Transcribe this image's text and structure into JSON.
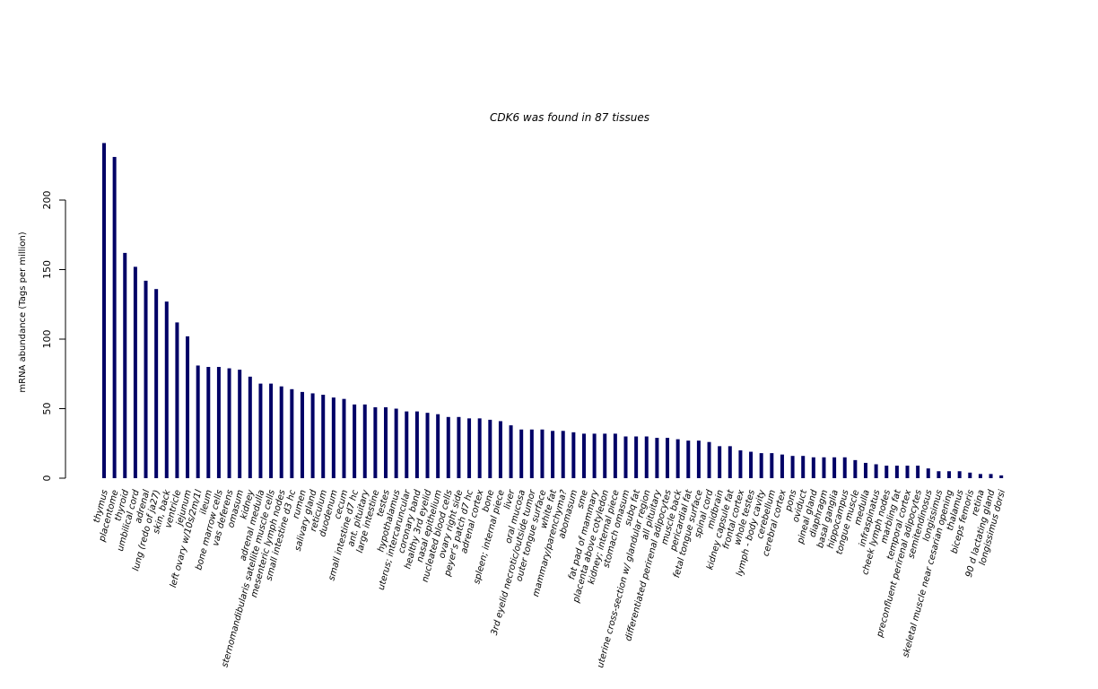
{
  "chart_data": {
    "type": "bar",
    "title": "CDK6  was found in  87  tissues",
    "xlabel": "",
    "ylabel": "mRNA abundance (Tags per million)",
    "ylim": [
      0,
      240
    ],
    "yticks": [
      0,
      50,
      100,
      150,
      200
    ],
    "bar_color": "#000066",
    "grid": false,
    "categories": [
      "thymus",
      "placentome",
      "thyroid",
      "umbilical cord",
      "adrenal",
      "lung (redo of ja27)",
      "skin, back",
      "ventricle",
      "jejunum",
      "left ovary w/10s/2m/1l",
      "ileum",
      "bone marrow cells",
      "vas deferens",
      "omasum",
      "kidney",
      "adrenal medulla",
      "sternomandibularis satellite muscle cells",
      "mesenteric lymph nodes",
      "small intestine d3 hc",
      "rumen",
      "salivary gland",
      "reticulum",
      "duodenum",
      "cecum",
      "small intestine d7 hc",
      "ant. pituitary",
      "large intestine",
      "testes",
      "hypothalamus",
      "uterus; intercaruncular",
      "coronary band",
      "healthy 3rd eyelid",
      "nasal epithelium",
      "nucleated blood cells",
      "ovary right side",
      "peyer's patch d7 hc",
      "adrenal cortex",
      "bone",
      "spleen; internal piece",
      "liver",
      "oral mucosa",
      "3rd eyelid necrotic/outside tumor",
      "outer tongue surface",
      "white fat",
      "mammary/parenchyma?",
      "abomasum",
      "sme",
      "fat pad of mammary",
      "placenta above cotyledon",
      "kidney; internal piece",
      "stomach omasum",
      "subq fat",
      "uterine cross-section w/ glandular region",
      "all pituitary",
      "differentiated perirenal adipocytes",
      "muscle back",
      "pericardial fat",
      "fetal tongue surface",
      "spinal cord",
      "midbrain",
      "kidney capsule fat",
      "frontal cortex",
      "whole testes",
      "lymph - body cavity",
      "cerebellum",
      "cerebral cortex",
      "pons",
      "oviduct",
      "pineal gland",
      "diaphragm",
      "basal ganglia",
      "hippocampus",
      "tongue muscle",
      "medulla",
      "infraspinatus",
      "cheek lymph nodes",
      "marbling fat",
      "temporal cortex",
      "preconfluent perirenal adipocytes",
      "semitendinosus",
      "longissimus",
      "skeletal muscle near cesarian opening",
      "thalamus",
      "biceps femoris",
      "retina",
      "90 d lactating gland",
      "longissimus dorsi"
    ],
    "values": [
      241,
      231,
      162,
      152,
      142,
      136,
      127,
      112,
      102,
      81,
      80,
      80,
      79,
      78,
      73,
      68,
      68,
      66,
      64,
      62,
      61,
      60,
      58,
      57,
      53,
      53,
      51,
      51,
      50,
      48,
      48,
      47,
      46,
      44,
      44,
      43,
      43,
      42,
      41,
      38,
      35,
      35,
      35,
      34,
      34,
      33,
      32,
      32,
      32,
      32,
      30,
      30,
      30,
      29,
      29,
      28,
      27,
      27,
      26,
      23,
      23,
      20,
      19,
      18,
      18,
      17,
      16,
      16,
      15,
      15,
      15,
      15,
      13,
      11,
      10,
      9,
      9,
      9,
      9,
      7,
      5,
      5,
      5,
      4,
      3,
      3,
      2
    ]
  }
}
